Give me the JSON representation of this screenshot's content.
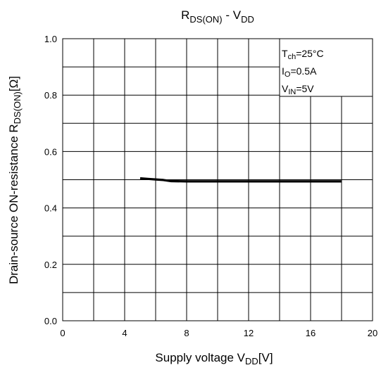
{
  "chart_data": {
    "type": "line",
    "title": {
      "main": "R",
      "main_sub": "DS(ON)",
      "sep": " - V",
      "sep_sub": "DD"
    },
    "xlabel": {
      "main": "Supply voltage V",
      "sub": "DD",
      "suffix": "[V]"
    },
    "ylabel": {
      "main": "Drain-source ON-resistance R",
      "sub": "DS(ON)",
      "suffix": "[Ω]"
    },
    "xlim": [
      0,
      20
    ],
    "ylim": [
      0,
      1.0
    ],
    "x_ticks": [
      "0",
      "4",
      "8",
      "12",
      "16",
      "20"
    ],
    "y_ticks": [
      "0.0",
      "0.2",
      "0.4",
      "0.6",
      "0.8",
      "1.0"
    ],
    "grid": true,
    "conditions": [
      {
        "main": "T",
        "sub": "ch",
        "rest": "=25°C"
      },
      {
        "main": "I",
        "sub": "O",
        "rest": "=0.5A"
      },
      {
        "main": "V",
        "sub": "IN",
        "rest": "=5V"
      }
    ],
    "series": [
      {
        "x": [
          5.0,
          5.5,
          6.0,
          6.5,
          7.0,
          8.0,
          10.0,
          12.0,
          14.0,
          16.0,
          18.0
        ],
        "y": [
          0.505,
          0.503,
          0.501,
          0.499,
          0.495,
          0.494,
          0.494,
          0.494,
          0.494,
          0.494,
          0.494
        ]
      }
    ]
  }
}
